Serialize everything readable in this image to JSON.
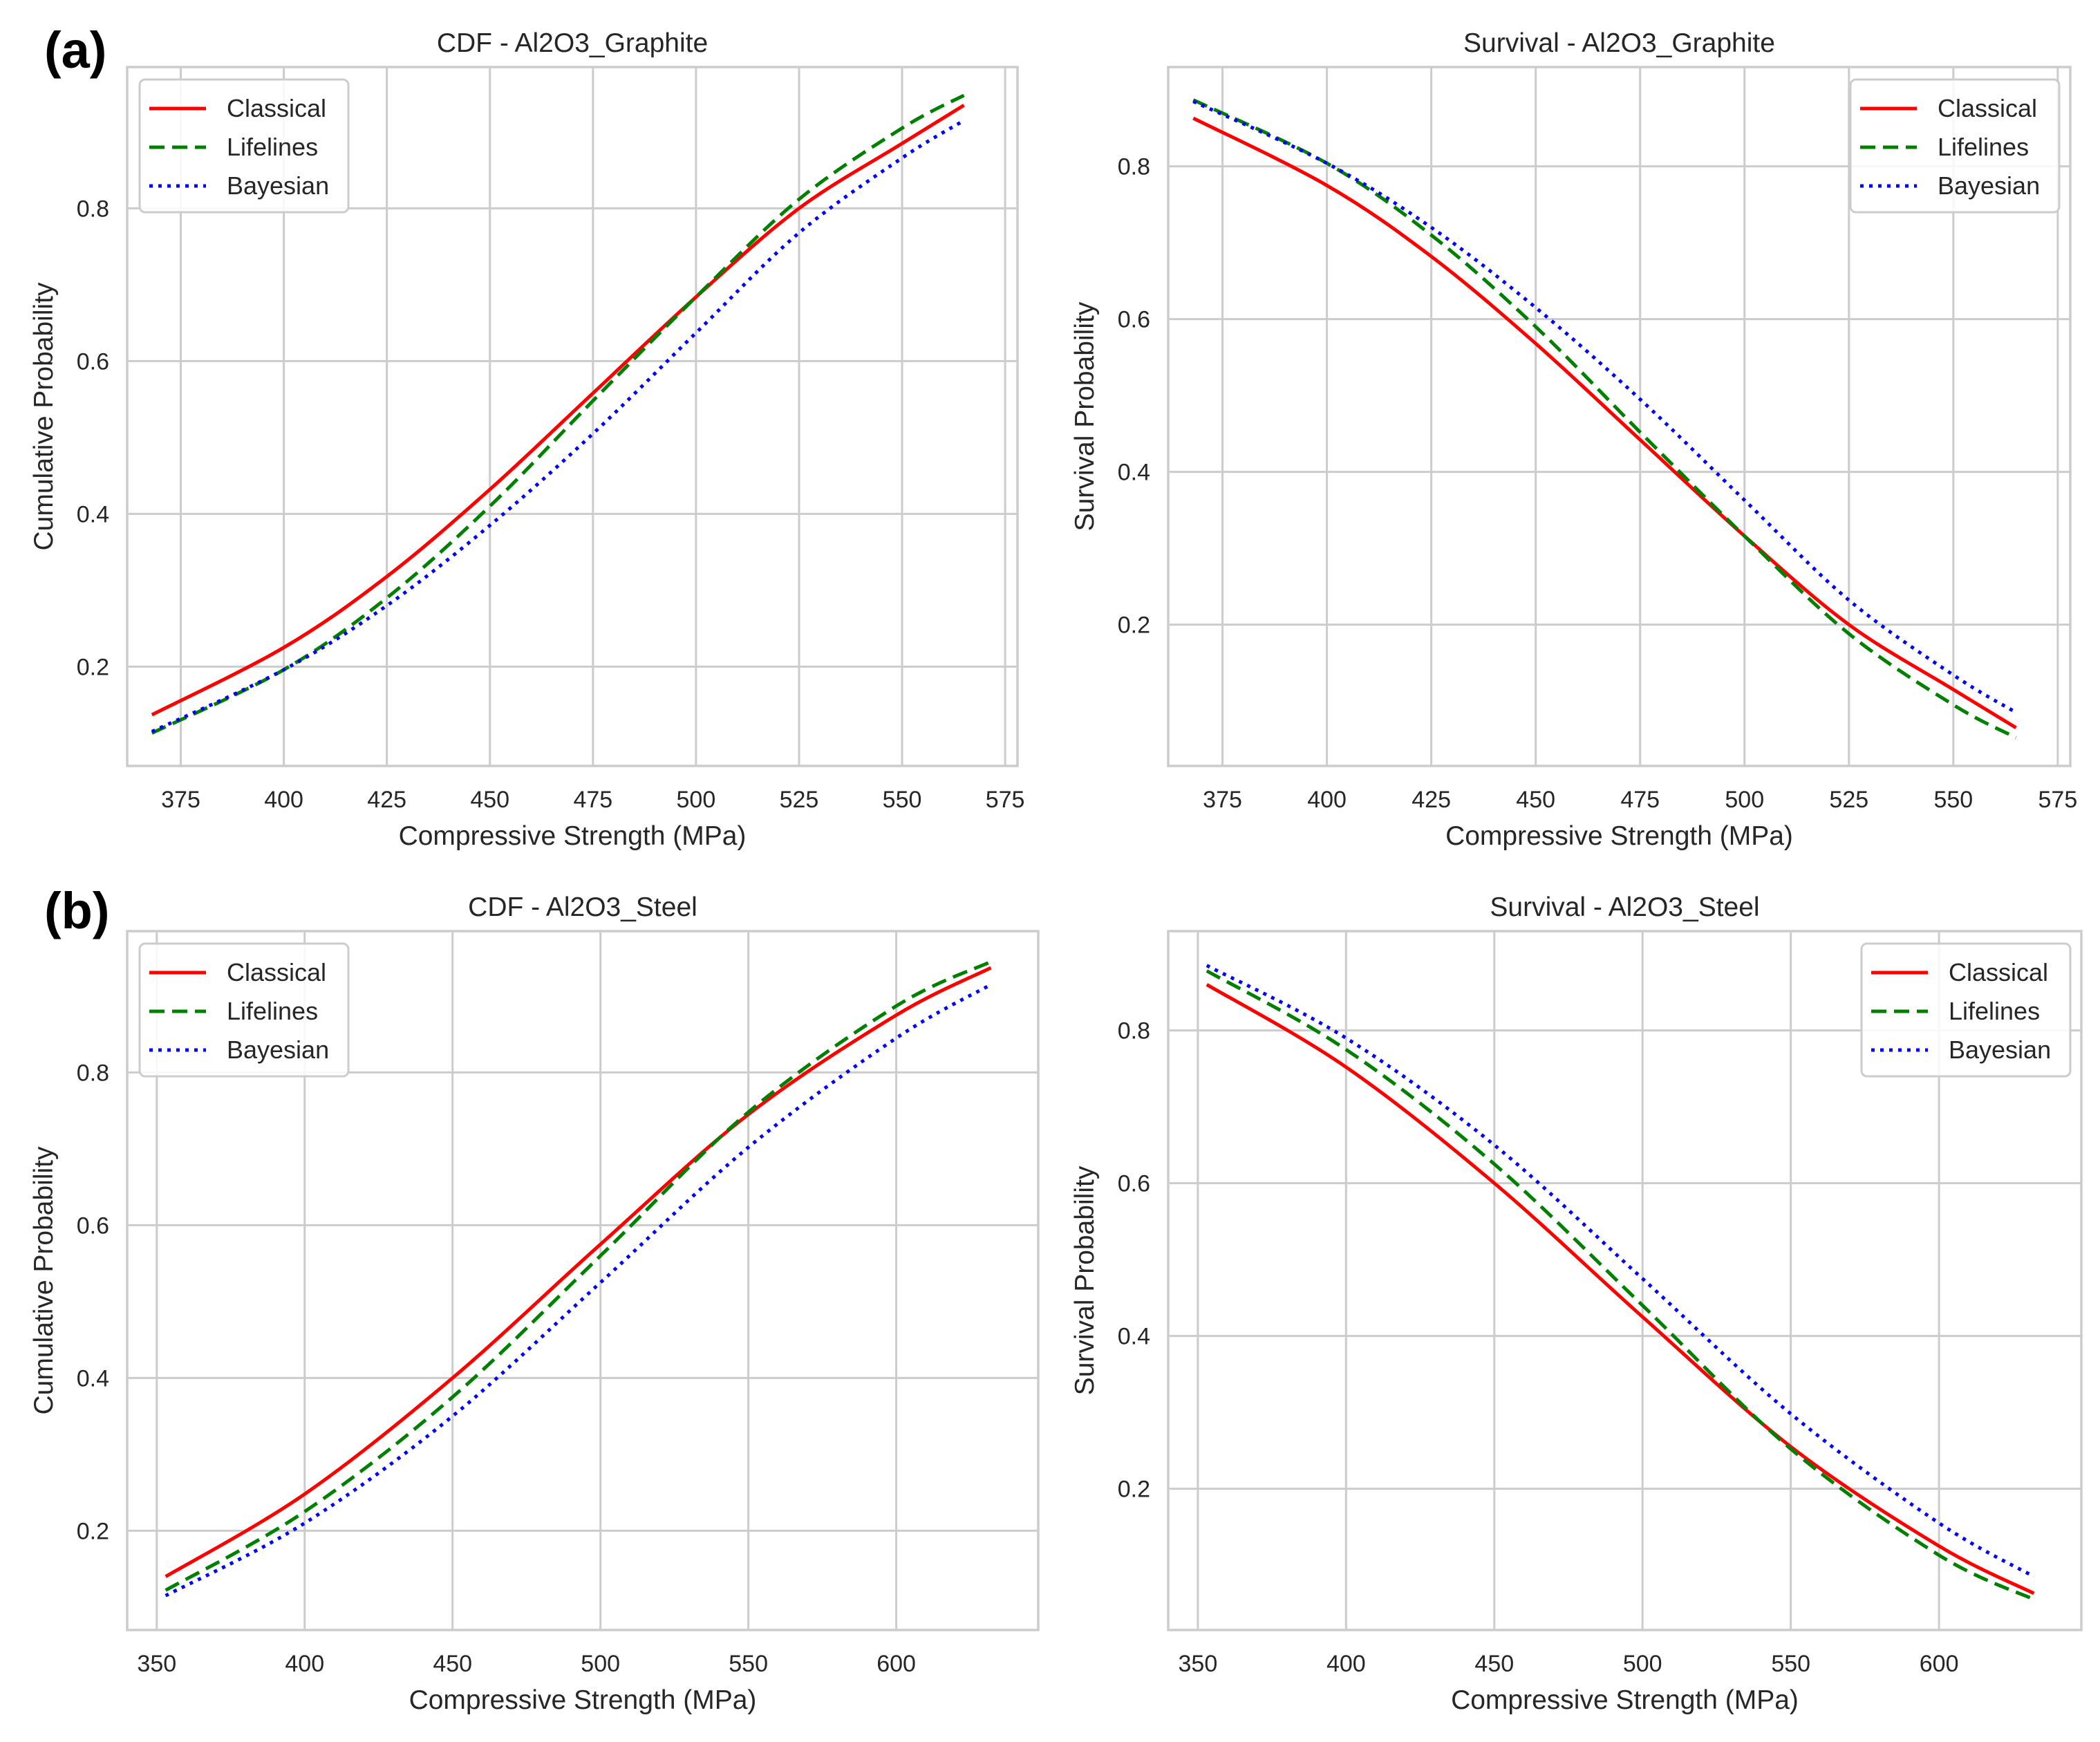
{
  "panel_labels": [
    "(a)",
    "(b)"
  ],
  "colors": {
    "classical": "#ff0000",
    "lifelines": "#008000",
    "bayesian": "#0000ff",
    "grid": "#cccccc",
    "frame": "#cccccc"
  },
  "chart_data": [
    {
      "type": "line",
      "title": "CDF - Al2O3_Graphite",
      "xlabel": "Compressive Strength (MPa)",
      "ylabel": "Cumulative Probability",
      "xlim": [
        362,
        578
      ],
      "ylim": [
        0.07,
        0.985
      ],
      "xticks": [
        375,
        400,
        425,
        450,
        475,
        500,
        525,
        550,
        575
      ],
      "yticks": [
        0.2,
        0.4,
        0.6,
        0.8
      ],
      "ytick_labels": [
        "0.2",
        "0.4",
        "0.6",
        "0.8"
      ],
      "legend_position": "top-left",
      "x": [
        368,
        400,
        425,
        450,
        475,
        500,
        525,
        550,
        565
      ],
      "series": [
        {
          "name": "Classical",
          "style": "solid",
          "color": "#ff0000",
          "values": [
            0.137,
            0.225,
            0.318,
            0.432,
            0.558,
            0.684,
            0.8,
            0.885,
            0.935
          ]
        },
        {
          "name": "Lifelines",
          "style": "dashed",
          "color": "#008000",
          "values": [
            0.113,
            0.196,
            0.29,
            0.41,
            0.548,
            0.684,
            0.812,
            0.905,
            0.948
          ]
        },
        {
          "name": "Bayesian",
          "style": "dotted",
          "color": "#0000ff",
          "values": [
            0.115,
            0.196,
            0.28,
            0.385,
            0.505,
            0.637,
            0.768,
            0.866,
            0.915
          ]
        }
      ]
    },
    {
      "type": "line",
      "title": "Survival - Al2O3_Graphite",
      "xlabel": "Compressive Strength (MPa)",
      "ylabel": "Survival Probability",
      "xlim": [
        362,
        578
      ],
      "ylim": [
        0.015,
        0.93
      ],
      "xticks": [
        375,
        400,
        425,
        450,
        475,
        500,
        525,
        550,
        575
      ],
      "yticks": [
        0.2,
        0.4,
        0.6,
        0.8
      ],
      "ytick_labels": [
        "0.2",
        "0.4",
        "0.6",
        "0.8"
      ],
      "legend_position": "top-right",
      "x": [
        368,
        400,
        425,
        450,
        475,
        500,
        525,
        550,
        565
      ],
      "series": [
        {
          "name": "Classical",
          "style": "solid",
          "color": "#ff0000",
          "values": [
            0.863,
            0.775,
            0.682,
            0.568,
            0.442,
            0.316,
            0.2,
            0.115,
            0.065
          ]
        },
        {
          "name": "Lifelines",
          "style": "dashed",
          "color": "#008000",
          "values": [
            0.887,
            0.804,
            0.71,
            0.59,
            0.452,
            0.316,
            0.188,
            0.095,
            0.052
          ]
        },
        {
          "name": "Bayesian",
          "style": "dotted",
          "color": "#0000ff",
          "values": [
            0.885,
            0.804,
            0.72,
            0.615,
            0.495,
            0.363,
            0.232,
            0.134,
            0.085
          ]
        }
      ]
    },
    {
      "type": "line",
      "title": "CDF - Al2O3_Steel",
      "xlabel": "Compressive Strength (MPa)",
      "ylabel": "Cumulative Probability",
      "xlim": [
        340,
        648
      ],
      "ylim": [
        0.07,
        0.985
      ],
      "xticks": [
        350,
        400,
        450,
        500,
        550,
        600
      ],
      "yticks": [
        0.2,
        0.4,
        0.6,
        0.8
      ],
      "ytick_labels": [
        "0.2",
        "0.4",
        "0.6",
        "0.8"
      ],
      "legend_position": "top-left",
      "x": [
        353,
        400,
        450,
        500,
        550,
        600,
        632
      ],
      "series": [
        {
          "name": "Classical",
          "style": "solid",
          "color": "#ff0000",
          "values": [
            0.14,
            0.248,
            0.4,
            0.575,
            0.745,
            0.875,
            0.937
          ]
        },
        {
          "name": "Lifelines",
          "style": "dashed",
          "color": "#008000",
          "values": [
            0.122,
            0.225,
            0.375,
            0.56,
            0.748,
            0.887,
            0.945
          ]
        },
        {
          "name": "Bayesian",
          "style": "dotted",
          "color": "#0000ff",
          "values": [
            0.115,
            0.21,
            0.35,
            0.525,
            0.702,
            0.845,
            0.915
          ]
        }
      ]
    },
    {
      "type": "line",
      "title": "Survival - Al2O3_Steel",
      "xlabel": "Compressive Strength (MPa)",
      "ylabel": "Survival Probability",
      "xlim": [
        340,
        648
      ],
      "ylim": [
        0.015,
        0.93
      ],
      "xticks": [
        350,
        400,
        450,
        500,
        550,
        600
      ],
      "yticks": [
        0.2,
        0.4,
        0.6,
        0.8
      ],
      "ytick_labels": [
        "0.2",
        "0.4",
        "0.6",
        "0.8"
      ],
      "legend_position": "top-right",
      "x": [
        353,
        400,
        450,
        500,
        550,
        600,
        632
      ],
      "series": [
        {
          "name": "Classical",
          "style": "solid",
          "color": "#ff0000",
          "values": [
            0.86,
            0.752,
            0.6,
            0.425,
            0.255,
            0.125,
            0.063
          ]
        },
        {
          "name": "Lifelines",
          "style": "dashed",
          "color": "#008000",
          "values": [
            0.878,
            0.775,
            0.625,
            0.44,
            0.252,
            0.113,
            0.055
          ]
        },
        {
          "name": "Bayesian",
          "style": "dotted",
          "color": "#0000ff",
          "values": [
            0.885,
            0.79,
            0.65,
            0.475,
            0.298,
            0.155,
            0.085
          ]
        }
      ]
    }
  ]
}
